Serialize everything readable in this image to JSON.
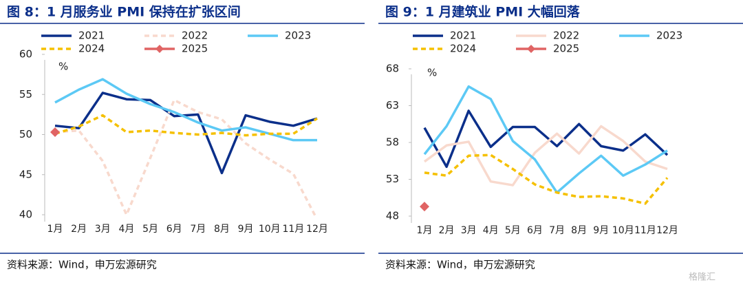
{
  "chart_data": [
    {
      "type": "line",
      "title": "图 8：1 月服务业 PMI 保持在扩张区间",
      "ylabel": "%",
      "categories": [
        "1月",
        "2月",
        "3月",
        "4月",
        "5月",
        "6月",
        "7月",
        "8月",
        "9月",
        "10月",
        "11月",
        "12月"
      ],
      "ylim": [
        40,
        60
      ],
      "yticks": [
        40,
        45,
        50,
        55,
        60
      ],
      "series": [
        {
          "name": "2021",
          "color": "#0b2f8a",
          "dash": false,
          "values": [
            51.1,
            50.8,
            55.2,
            54.4,
            54.3,
            52.3,
            52.5,
            45.2,
            52.4,
            51.6,
            51.1,
            52.0
          ]
        },
        {
          "name": "2022",
          "color": "#f8d9cd",
          "dash": true,
          "values": [
            50.3,
            50.5,
            46.7,
            40.0,
            47.1,
            54.3,
            52.8,
            51.9,
            48.9,
            46.9,
            45.1,
            39.4
          ]
        },
        {
          "name": "2023",
          "color": "#5cc9f5",
          "dash": false,
          "values": [
            54.0,
            55.6,
            56.9,
            55.1,
            53.8,
            52.8,
            51.5,
            50.5,
            50.9,
            50.1,
            49.3,
            49.3
          ]
        },
        {
          "name": "2024",
          "color": "#f5c000",
          "dash": true,
          "values": [
            50.1,
            51.0,
            52.4,
            50.3,
            50.5,
            50.2,
            50.0,
            50.2,
            49.9,
            50.1,
            50.1,
            52.0
          ]
        },
        {
          "name": "2025",
          "color": "#e06464",
          "dash": false,
          "marker": true,
          "values": [
            50.3,
            null,
            null,
            null,
            null,
            null,
            null,
            null,
            null,
            null,
            null,
            null
          ]
        }
      ],
      "source": "资料来源：Wind，申万宏源研究"
    },
    {
      "type": "line",
      "title": "图 9：1 月建筑业 PMI 大幅回落",
      "ylabel": "%",
      "categories": [
        "1月",
        "2月",
        "3月",
        "4月",
        "5月",
        "6月",
        "7月",
        "8月",
        "9月",
        "10月",
        "11月",
        "12月"
      ],
      "ylim": [
        48,
        68
      ],
      "yticks": [
        48,
        53,
        58,
        63,
        68
      ],
      "series": [
        {
          "name": "2021",
          "color": "#0b2f8a",
          "dash": false,
          "values": [
            60.0,
            54.7,
            62.3,
            57.4,
            60.1,
            60.1,
            57.5,
            60.5,
            57.5,
            56.9,
            59.1,
            56.3
          ]
        },
        {
          "name": "2022",
          "color": "#f8d9cd",
          "dash": false,
          "values": [
            55.4,
            57.6,
            58.1,
            52.7,
            52.2,
            56.6,
            59.2,
            56.5,
            60.2,
            58.2,
            55.4,
            54.4
          ]
        },
        {
          "name": "2023",
          "color": "#5cc9f5",
          "dash": false,
          "values": [
            56.4,
            60.2,
            65.6,
            63.9,
            58.2,
            55.7,
            51.2,
            53.8,
            56.2,
            53.5,
            55.0,
            56.9
          ]
        },
        {
          "name": "2024",
          "color": "#f5c000",
          "dash": true,
          "values": [
            53.9,
            53.5,
            56.2,
            56.3,
            54.4,
            52.3,
            51.2,
            50.6,
            50.7,
            50.4,
            49.7,
            53.2
          ]
        },
        {
          "name": "2025",
          "color": "#e06464",
          "dash": false,
          "marker": true,
          "values": [
            49.3,
            null,
            null,
            null,
            null,
            null,
            null,
            null,
            null,
            null,
            null,
            null
          ]
        }
      ],
      "source": "资料来源：Wind，申万宏源研究"
    }
  ],
  "watermark": "格隆汇"
}
